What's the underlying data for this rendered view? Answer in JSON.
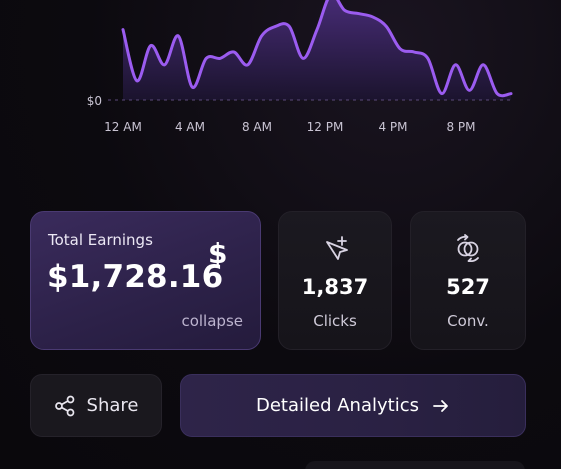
{
  "chart_data": {
    "type": "area",
    "x_tick_labels": [
      "12 AM",
      "4 AM",
      "8 AM",
      "12 PM",
      "4 PM",
      "8 PM"
    ],
    "y_tick_labels": [
      "$0"
    ],
    "series": [
      {
        "values": [
          2.2,
          0.6,
          1.7,
          1.1,
          2.0,
          0.4,
          1.3,
          1.3,
          1.5,
          1.1,
          2.0,
          2.3,
          2.3,
          1.3,
          2.2,
          3.3,
          2.8,
          2.7,
          2.6,
          2.3,
          1.6,
          1.5,
          1.3,
          0.2,
          1.1,
          0.3,
          1.1,
          0.2,
          0.2
        ]
      }
    ],
    "colors": {
      "line": "#9b5cf0",
      "fill_top": "#4b2e7d",
      "fill_bottom": "#1c1430"
    }
  },
  "earnings": {
    "label": "Total Earnings",
    "value": "$1,728.16",
    "icon_text": "$",
    "collapse_label": "collapse"
  },
  "stats": [
    {
      "icon": "cursor-click-icon",
      "value": "1,837",
      "label": "Clicks"
    },
    {
      "icon": "conversion-icon",
      "value": "527",
      "label": "Conv."
    }
  ],
  "actions": {
    "share_label": "Share",
    "analytics_label": "Detailed Analytics"
  }
}
